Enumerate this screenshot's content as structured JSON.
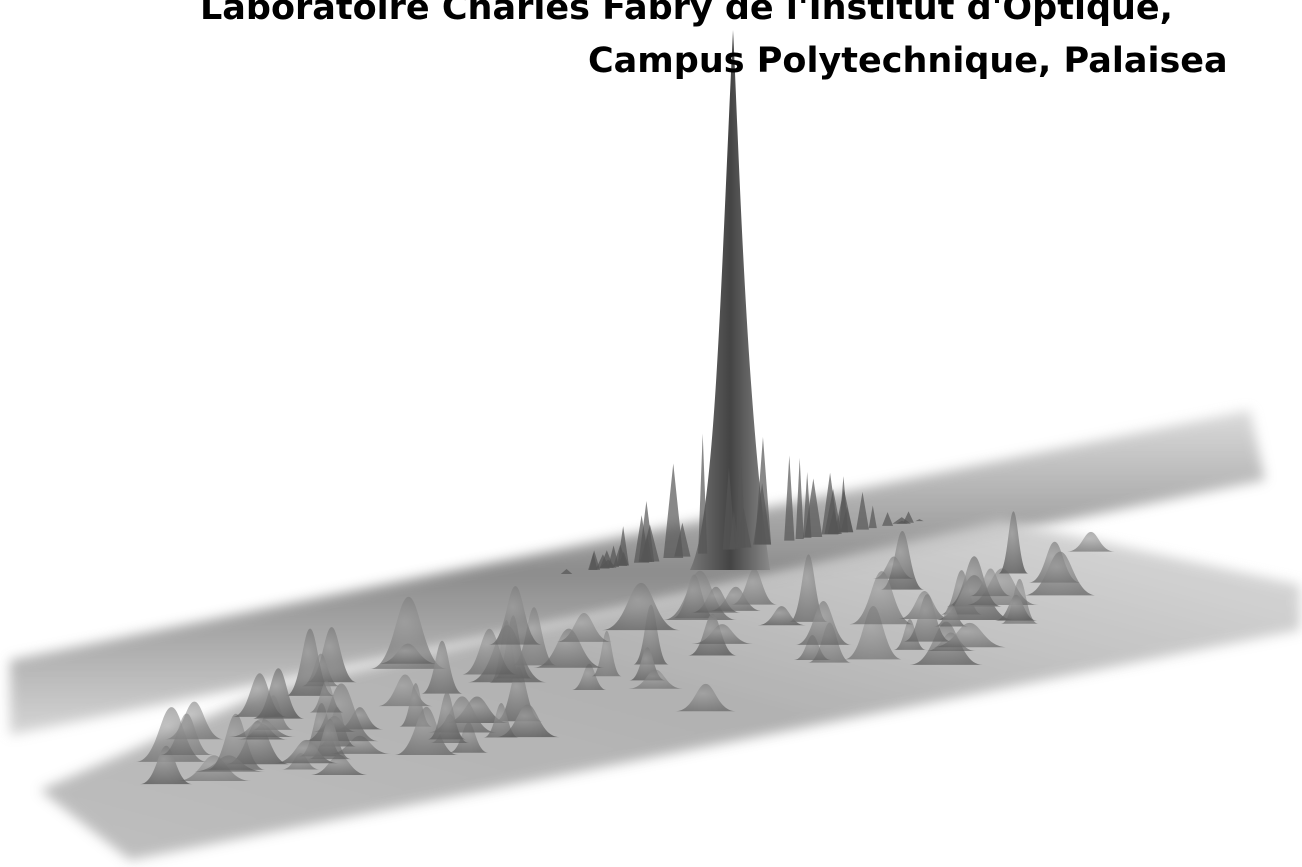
{
  "header": {
    "line1": "Laboratoire Charles Fabry de l'Institut d'Optique,",
    "line2": "Campus Polytechnique, Palaisea"
  }
}
